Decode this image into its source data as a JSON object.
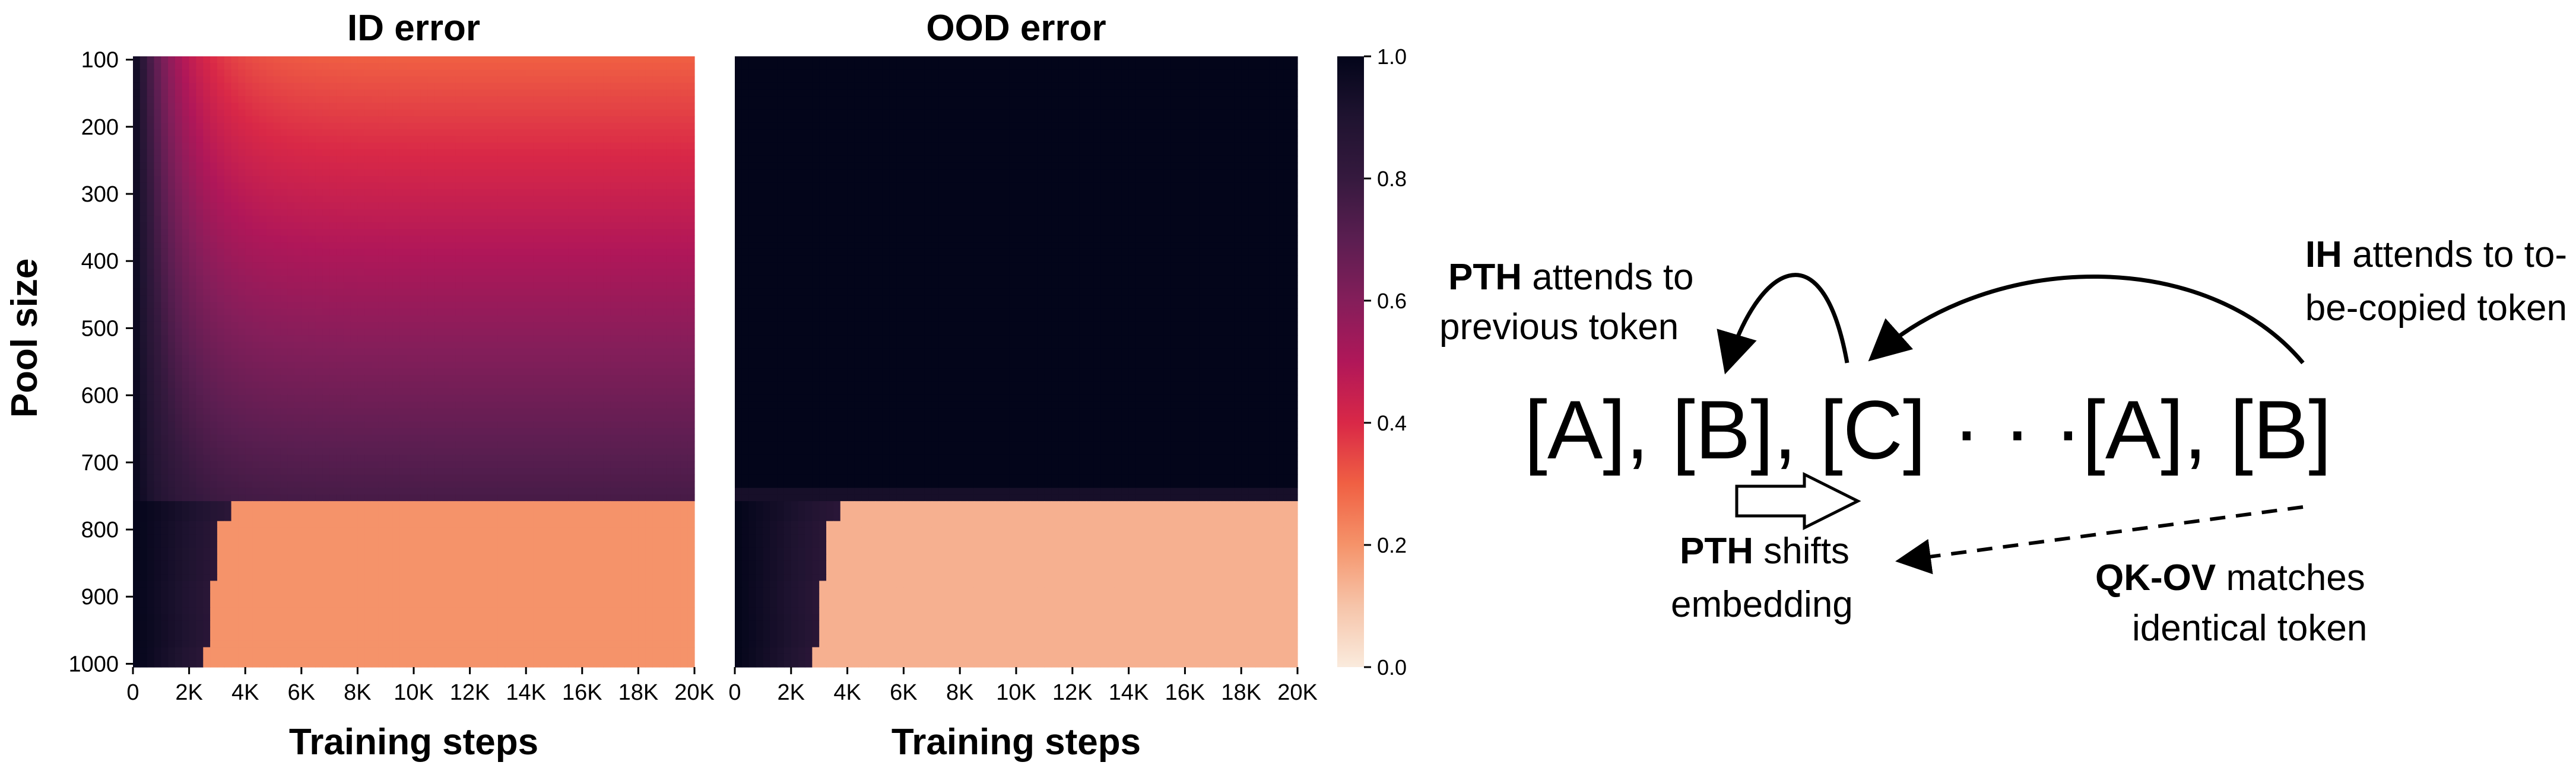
{
  "chart_data": [
    {
      "type": "heatmap",
      "title": "ID error",
      "xlabel": "Training steps",
      "ylabel": "Pool size",
      "x_ticks": [
        "0",
        "2K",
        "4K",
        "6K",
        "8K",
        "10K",
        "12K",
        "14K",
        "16K",
        "18K",
        "20K"
      ],
      "x_range": [
        0,
        20000
      ],
      "y_ticks": [
        "100",
        "200",
        "300",
        "400",
        "500",
        "600",
        "700",
        "800",
        "900",
        "1000"
      ],
      "y_range": [
        100,
        1000
      ],
      "colormap": "rocket",
      "value_range": [
        0.0,
        1.0
      ],
      "grid": false,
      "description_values": {
        "pool_size_100_to_750": "error falls from 1.0 at step 0 to about 0.3 (pool 100) rising to about 0.75 (pool 750) by 20K steps",
        "pool_size_760_to_1000": "error drops sharply from 1.0 to about 0.2 between 2K and 4K steps",
        "transition_step_by_pool_size": {
          "760": 3400,
          "800": 3000,
          "850": 2900,
          "900": 2700,
          "950": 2800,
          "1000": 2500
        }
      }
    },
    {
      "type": "heatmap",
      "title": "OOD error",
      "xlabel": "Training steps",
      "ylabel": "",
      "x_ticks": [
        "0",
        "2K",
        "4K",
        "6K",
        "8K",
        "10K",
        "12K",
        "14K",
        "16K",
        "18K",
        "20K"
      ],
      "x_range": [
        0,
        20000
      ],
      "y_range": [
        100,
        1000
      ],
      "colormap": "rocket",
      "value_range": [
        0.0,
        1.0
      ],
      "grid": false,
      "description_values": {
        "pool_size_100_to_750": "error stays at about 1.0 throughout training",
        "pool_size_760_to_1000": "error drops sharply from 1.0 to about 0.15 between 2K and 4K steps"
      }
    }
  ],
  "colorbar": {
    "ticks": [
      "0.0",
      "0.2",
      "0.4",
      "0.6",
      "0.8",
      "1.0"
    ],
    "range": [
      0.0,
      1.0
    ]
  },
  "diagram": {
    "tokens": [
      "[A], [B], [C]",
      "· · ·",
      "[A], [B]"
    ],
    "pth_attends_bold": "PTH",
    "pth_attends_line1": " attends to",
    "pth_attends_line2": "previous token",
    "ih_attends_bold": "IH",
    "ih_attends_line1": " attends to to-",
    "ih_attends_line2": "be-copied token",
    "pth_shifts_bold": "PTH",
    "pth_shifts_line1": " shifts",
    "pth_shifts_line2": "embedding",
    "qkov_bold": "QK-OV",
    "qkov_line1": " matches",
    "qkov_line2": "identical token"
  }
}
